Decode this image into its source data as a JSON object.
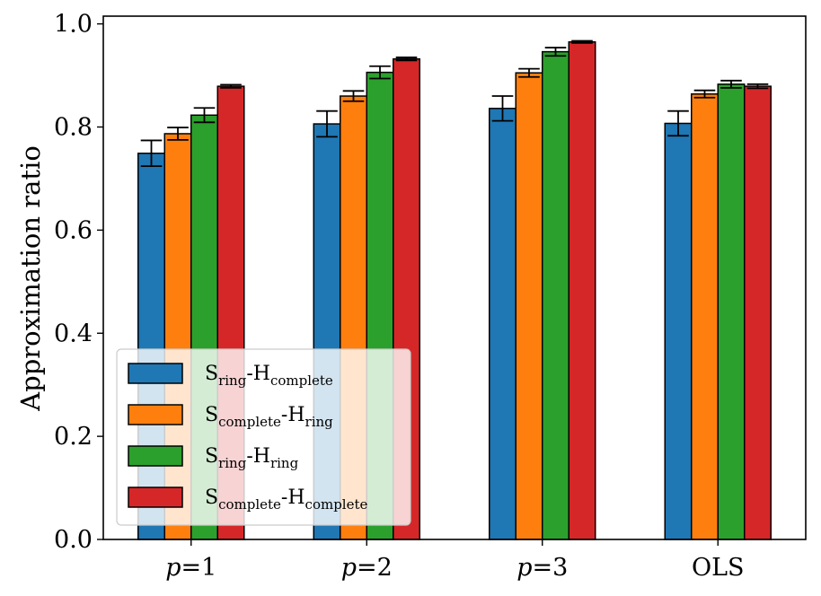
{
  "chart_data": {
    "type": "bar",
    "categories": [
      {
        "italic": "p",
        "rest": "=1"
      },
      {
        "italic": "p",
        "rest": "=2"
      },
      {
        "italic": "p",
        "rest": "=3"
      },
      {
        "italic": "",
        "rest": "OLS"
      }
    ],
    "series": [
      {
        "legend": {
          "a": "S",
          "a_sub": "ring",
          "sep": "-",
          "b": "H",
          "b_sub": "complete"
        },
        "color": "#1f77b4",
        "values": [
          0.749,
          0.806,
          0.836,
          0.807
        ],
        "errors": [
          0.025,
          0.025,
          0.024,
          0.024
        ]
      },
      {
        "legend": {
          "a": "S",
          "a_sub": "complete",
          "sep": "-",
          "b": "H",
          "b_sub": "ring"
        },
        "color": "#ff7f0e",
        "values": [
          0.787,
          0.86,
          0.905,
          0.864
        ],
        "errors": [
          0.012,
          0.01,
          0.008,
          0.007
        ]
      },
      {
        "legend": {
          "a": "S",
          "a_sub": "ring",
          "sep": "-",
          "b": "H",
          "b_sub": "ring"
        },
        "color": "#2ca02c",
        "values": [
          0.823,
          0.906,
          0.946,
          0.883
        ],
        "errors": [
          0.014,
          0.012,
          0.008,
          0.007
        ]
      },
      {
        "legend": {
          "a": "S",
          "a_sub": "complete",
          "sep": "-",
          "b": "H",
          "b_sub": "complete"
        },
        "color": "#d62728",
        "values": [
          0.879,
          0.932,
          0.965,
          0.879
        ],
        "errors": [
          0.003,
          0.003,
          0.002,
          0.004
        ]
      }
    ],
    "ylabel": "Approximation ratio",
    "xlabel": "",
    "ylim": [
      0.0,
      1.015
    ],
    "yticks": [
      "0.0",
      "0.2",
      "0.4",
      "0.6",
      "0.8",
      "1.0"
    ],
    "legend_position": "lower-left",
    "grid": false
  }
}
